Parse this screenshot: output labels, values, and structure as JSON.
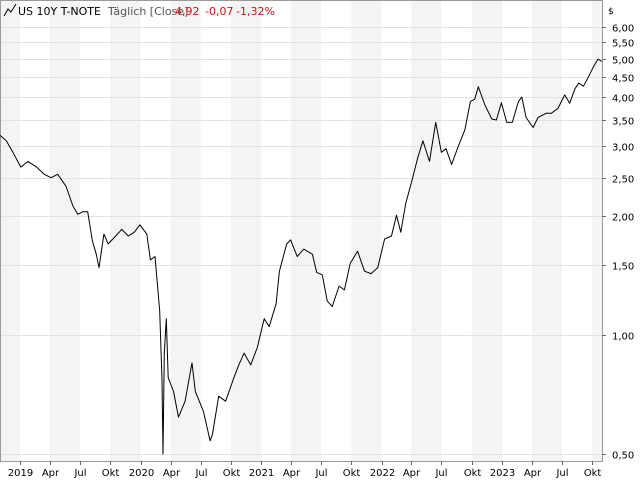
{
  "header": {
    "symbol_icon": "line-chart-icon",
    "name": "US 10Y T-NOTE",
    "period_label": "Täglich [Close]",
    "last": "4,92",
    "change": "-0,07",
    "change_pct": "-1,32%",
    "change_color": "#d01010",
    "currency": "$"
  },
  "chart_data": {
    "type": "line",
    "scale": "log",
    "title": "US 10Y T-NOTE",
    "xlabel": "",
    "ylabel": "",
    "xlim": [
      "2018-11-01",
      "2023-10-31"
    ],
    "ylim": [
      0.48,
      7.0
    ],
    "grid": true,
    "y_ticks": [
      {
        "value": 0.5,
        "label": "0,50"
      },
      {
        "value": 1.0,
        "label": "1,00"
      },
      {
        "value": 1.5,
        "label": "1,50"
      },
      {
        "value": 2.0,
        "label": "2,00"
      },
      {
        "value": 2.5,
        "label": "2,50"
      },
      {
        "value": 3.0,
        "label": "3,00"
      },
      {
        "value": 3.5,
        "label": "3,50"
      },
      {
        "value": 4.0,
        "label": "4,00"
      },
      {
        "value": 4.5,
        "label": "4,50"
      },
      {
        "value": 5.0,
        "label": "5,00"
      },
      {
        "value": 5.5,
        "label": "5,50"
      },
      {
        "value": 6.0,
        "label": "6,00"
      }
    ],
    "x_ticks": [
      {
        "date": "2019-01-01",
        "label": "2019"
      },
      {
        "date": "2019-04-01",
        "label": "Apr"
      },
      {
        "date": "2019-07-01",
        "label": "Jul"
      },
      {
        "date": "2019-10-01",
        "label": "Okt"
      },
      {
        "date": "2020-01-01",
        "label": "2020"
      },
      {
        "date": "2020-04-01",
        "label": "Apr"
      },
      {
        "date": "2020-07-01",
        "label": "Jul"
      },
      {
        "date": "2020-10-01",
        "label": "Okt"
      },
      {
        "date": "2021-01-01",
        "label": "2021"
      },
      {
        "date": "2021-04-01",
        "label": "Apr"
      },
      {
        "date": "2021-07-01",
        "label": "Jul"
      },
      {
        "date": "2021-10-01",
        "label": "Okt"
      },
      {
        "date": "2022-01-01",
        "label": "2022"
      },
      {
        "date": "2022-04-01",
        "label": "Apr"
      },
      {
        "date": "2022-07-01",
        "label": "Jul"
      },
      {
        "date": "2022-10-01",
        "label": "Okt"
      },
      {
        "date": "2023-01-01",
        "label": "2023"
      },
      {
        "date": "2023-04-01",
        "label": "Apr"
      },
      {
        "date": "2023-07-01",
        "label": "Jul"
      },
      {
        "date": "2023-10-01",
        "label": "Okt"
      }
    ],
    "series": [
      {
        "color": "#000000",
        "x": [
          "2018-11-01",
          "2018-11-20",
          "2018-12-10",
          "2019-01-03",
          "2019-01-25",
          "2019-02-20",
          "2019-03-15",
          "2019-04-05",
          "2019-04-25",
          "2019-05-20",
          "2019-06-10",
          "2019-06-25",
          "2019-07-10",
          "2019-07-25",
          "2019-08-08",
          "2019-08-20",
          "2019-08-28",
          "2019-09-12",
          "2019-09-25",
          "2019-10-15",
          "2019-11-05",
          "2019-11-25",
          "2019-12-13",
          "2019-12-30",
          "2020-01-20",
          "2020-01-31",
          "2020-02-14",
          "2020-02-28",
          "2020-03-06",
          "2020-03-09",
          "2020-03-13",
          "2020-03-19",
          "2020-03-25",
          "2020-04-10",
          "2020-04-25",
          "2020-05-15",
          "2020-06-05",
          "2020-06-15",
          "2020-07-10",
          "2020-07-30",
          "2020-08-06",
          "2020-08-25",
          "2020-09-15",
          "2020-10-10",
          "2020-10-25",
          "2020-11-10",
          "2020-11-30",
          "2020-12-20",
          "2021-01-10",
          "2021-01-25",
          "2021-02-15",
          "2021-02-25",
          "2021-03-19",
          "2021-03-31",
          "2021-04-20",
          "2021-05-10",
          "2021-06-05",
          "2021-06-18",
          "2021-07-05",
          "2021-07-20",
          "2021-08-04",
          "2021-08-25",
          "2021-09-10",
          "2021-09-28",
          "2021-10-20",
          "2021-11-10",
          "2021-11-30",
          "2021-12-20",
          "2022-01-10",
          "2022-01-31",
          "2022-02-15",
          "2022-02-28",
          "2022-03-15",
          "2022-04-05",
          "2022-04-20",
          "2022-05-06",
          "2022-05-26",
          "2022-06-14",
          "2022-07-01",
          "2022-07-15",
          "2022-08-01",
          "2022-08-20",
          "2022-09-10",
          "2022-09-27",
          "2022-10-10",
          "2022-10-21",
          "2022-11-10",
          "2022-12-01",
          "2022-12-15",
          "2022-12-30",
          "2023-01-15",
          "2023-02-01",
          "2023-02-20",
          "2023-03-02",
          "2023-03-15",
          "2023-04-05",
          "2023-04-20",
          "2023-05-15",
          "2023-05-31",
          "2023-06-20",
          "2023-07-10",
          "2023-07-25",
          "2023-08-10",
          "2023-08-21",
          "2023-09-05",
          "2023-09-20",
          "2023-10-05",
          "2023-10-19",
          "2023-10-31"
        ],
        "y": [
          3.2,
          3.1,
          2.9,
          2.66,
          2.75,
          2.66,
          2.55,
          2.5,
          2.55,
          2.38,
          2.12,
          2.02,
          2.05,
          2.05,
          1.73,
          1.6,
          1.48,
          1.8,
          1.7,
          1.77,
          1.85,
          1.78,
          1.82,
          1.9,
          1.8,
          1.55,
          1.58,
          1.15,
          0.77,
          0.5,
          0.9,
          1.1,
          0.78,
          0.72,
          0.62,
          0.68,
          0.85,
          0.72,
          0.64,
          0.54,
          0.56,
          0.7,
          0.68,
          0.78,
          0.84,
          0.9,
          0.84,
          0.93,
          1.1,
          1.05,
          1.2,
          1.45,
          1.7,
          1.74,
          1.58,
          1.65,
          1.6,
          1.44,
          1.42,
          1.22,
          1.18,
          1.33,
          1.3,
          1.52,
          1.63,
          1.45,
          1.43,
          1.48,
          1.75,
          1.78,
          2.01,
          1.82,
          2.15,
          2.5,
          2.8,
          3.1,
          2.75,
          3.45,
          2.9,
          2.96,
          2.7,
          2.98,
          3.3,
          3.9,
          3.95,
          4.25,
          3.82,
          3.52,
          3.5,
          3.87,
          3.45,
          3.45,
          3.9,
          4.0,
          3.55,
          3.35,
          3.55,
          3.64,
          3.64,
          3.75,
          4.05,
          3.86,
          4.2,
          4.34,
          4.26,
          4.5,
          4.77,
          4.99,
          4.92
        ]
      }
    ]
  }
}
